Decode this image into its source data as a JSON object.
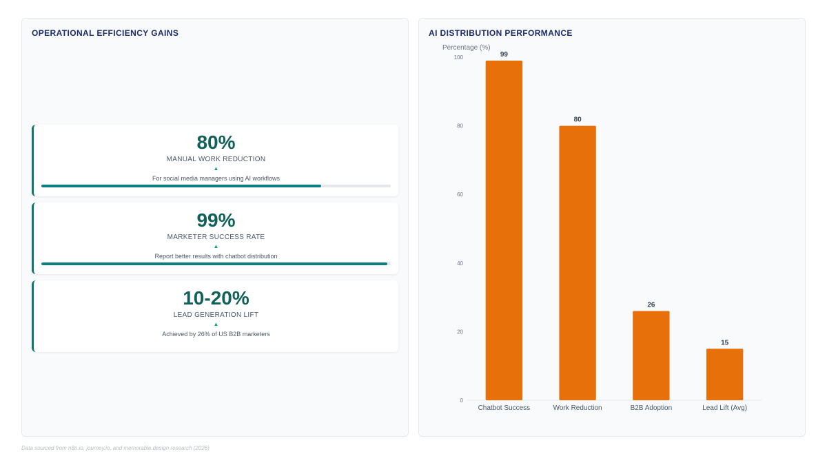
{
  "left_panel": {
    "title": "OPERATIONAL EFFICIENCY GAINS",
    "cards": [
      {
        "value": "80%",
        "label": "MANUAL WORK REDUCTION",
        "arrow": "▲",
        "sub": "For social media managers using AI workflows",
        "progress": 0.8
      },
      {
        "value": "99%",
        "label": "MARKETER SUCCESS RATE",
        "arrow": "▲",
        "sub": "Report better results with chatbot distribution",
        "progress": 0.99
      },
      {
        "value": "10-20%",
        "label": "LEAD GENERATION LIFT",
        "arrow": "▲",
        "sub": "Achieved by 26% of US B2B marketers"
      }
    ]
  },
  "right_panel": {
    "title": "AI DISTRIBUTION PERFORMANCE"
  },
  "chart_data": {
    "type": "bar",
    "title": "AI DISTRIBUTION PERFORMANCE",
    "ylabel": "Percentage (%)",
    "xlabel": "",
    "categories": [
      "Chatbot Success",
      "Work Reduction",
      "B2B Adoption",
      "Lead Lift (Avg)"
    ],
    "values": [
      99,
      80,
      26,
      15
    ],
    "ylim": [
      0,
      100
    ],
    "yticks": [
      0,
      20,
      40,
      60,
      80,
      100
    ],
    "grid": false,
    "legend": "none",
    "color": "#e8700a"
  },
  "footer": "Data sourced from n8n.io, journey.io, and memorable.design research (2026)",
  "colors": {
    "accent_teal": "#0f766e",
    "title_navy": "#1e2a6b",
    "bar_orange": "#e8700a"
  }
}
